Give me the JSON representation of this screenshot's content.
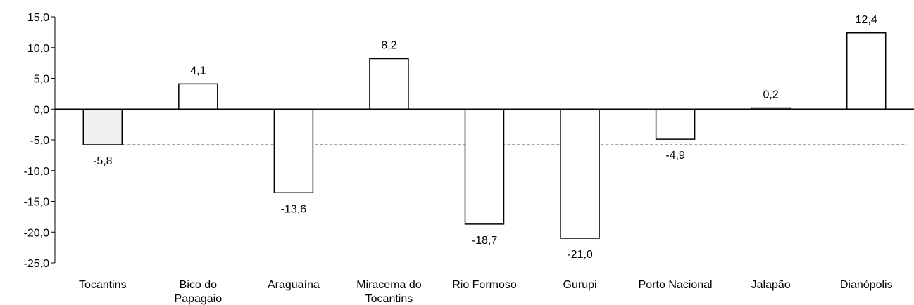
{
  "chart_data": {
    "type": "bar",
    "title": "",
    "xlabel": "",
    "ylabel": "",
    "ylim": [
      -25,
      15
    ],
    "yticks": [
      "15,0",
      "10,0",
      "5,0",
      "0,0",
      "-5,0",
      "-10,0",
      "-15,0",
      "-20,0",
      "-25,0"
    ],
    "ytick_values": [
      15,
      10,
      5,
      0,
      -5,
      -10,
      -15,
      -20,
      -25
    ],
    "grid": false,
    "legend": "none",
    "categories": [
      [
        "Tocantins"
      ],
      [
        "Bico do",
        "Papagaio"
      ],
      [
        "Araguaína"
      ],
      [
        "Miracema do",
        "Tocantins"
      ],
      [
        "Rio Formoso"
      ],
      [
        "Gurupi"
      ],
      [
        "Porto Nacional"
      ],
      [
        "Jalapão"
      ],
      [
        "Dianópolis"
      ]
    ],
    "values": [
      -5.8,
      4.1,
      -13.6,
      8.2,
      -18.7,
      -21.0,
      -4.9,
      0.2,
      12.4
    ],
    "value_labels": [
      "-5,8",
      "4,1",
      "-13,6",
      "8,2",
      "-18,7",
      "-21,0",
      "-4,9",
      "0,2",
      "12,4"
    ],
    "reference_line": {
      "value": -5.8,
      "style": "dashed"
    },
    "colors": {
      "highlight_fill": "#f0f0f0",
      "bar_fill": "#ffffff",
      "bar_stroke": "#000000",
      "reference_line": "#a08060"
    },
    "highlight_index": 0
  }
}
